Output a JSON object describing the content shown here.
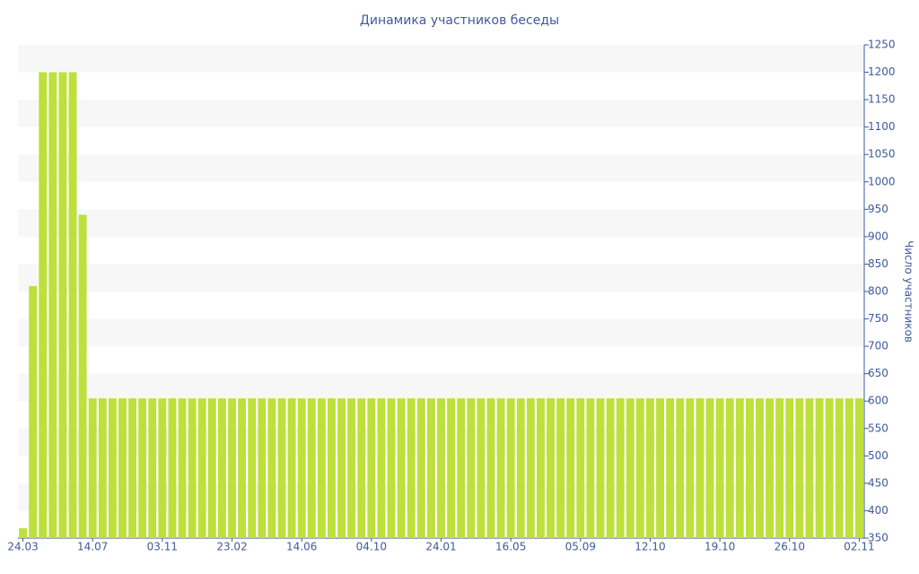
{
  "chart_data": {
    "type": "bar",
    "title": "Динамика участников беседы",
    "y_label": "Число участников",
    "categories": [
      "24.03",
      null,
      null,
      null,
      null,
      null,
      null,
      "14.07",
      null,
      null,
      null,
      null,
      null,
      null,
      "03.11",
      null,
      null,
      null,
      null,
      null,
      null,
      "23.02",
      null,
      null,
      null,
      null,
      null,
      null,
      "14.06",
      null,
      null,
      null,
      null,
      null,
      null,
      "04.10",
      null,
      null,
      null,
      null,
      null,
      null,
      "24.01",
      null,
      null,
      null,
      null,
      null,
      null,
      "16.05",
      null,
      null,
      null,
      null,
      null,
      null,
      "05.09",
      null,
      null,
      null,
      null,
      null,
      null,
      "12.10",
      null,
      null,
      null,
      null,
      null,
      null,
      "19.10",
      null,
      null,
      null,
      null,
      null,
      null,
      "26.10",
      null,
      null,
      null,
      null,
      null,
      null,
      "02.11"
    ],
    "values": [
      368,
      810,
      1200,
      1200,
      1200,
      1200,
      940,
      605,
      605,
      605,
      605,
      605,
      605,
      605,
      605,
      605,
      605,
      605,
      605,
      605,
      605,
      605,
      605,
      605,
      605,
      605,
      605,
      605,
      605,
      605,
      605,
      605,
      605,
      605,
      605,
      605,
      605,
      605,
      605,
      605,
      605,
      605,
      605,
      605,
      605,
      605,
      605,
      605,
      605,
      605,
      605,
      605,
      605,
      605,
      605,
      605,
      605,
      605,
      605,
      605,
      605,
      605,
      605,
      605,
      605,
      605,
      605,
      605,
      605,
      605,
      605,
      605,
      605,
      605,
      605,
      605,
      605,
      605,
      605,
      605,
      605,
      605,
      605,
      605,
      605
    ],
    "color": "#bde03a",
    "ylim": [
      350,
      1250
    ],
    "yticks": [
      350,
      400,
      450,
      500,
      550,
      600,
      650,
      700,
      750,
      800,
      850,
      900,
      950,
      1000,
      1050,
      1100,
      1150,
      1200,
      1250
    ],
    "grid": true
  }
}
